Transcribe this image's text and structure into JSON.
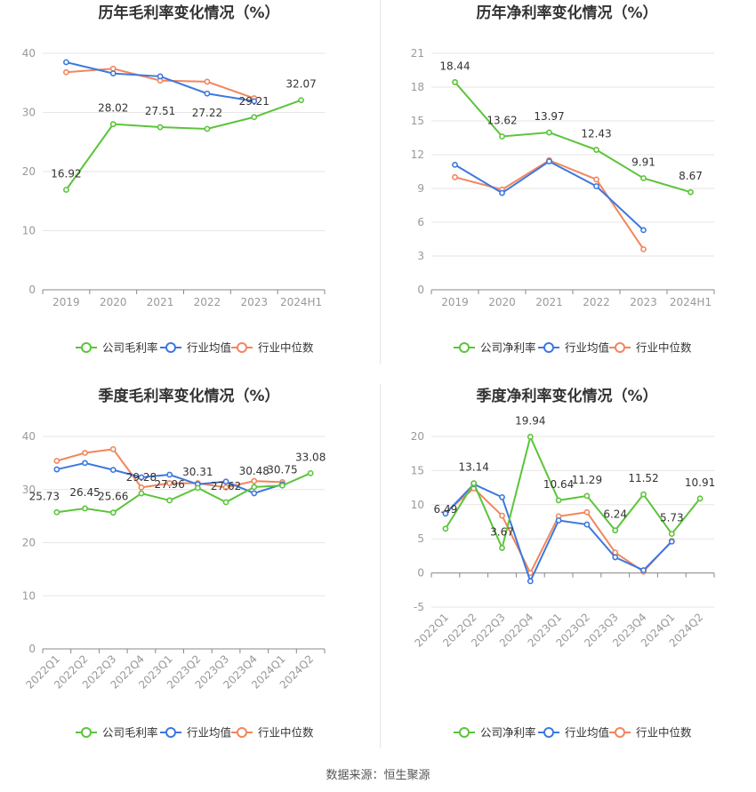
{
  "source_label": "数据来源：恒生聚源",
  "colors": {
    "company": "#5cc43b",
    "avg": "#3d78e0",
    "median": "#f2865c",
    "grid": "#e6e6e6",
    "axis": "#999999",
    "label": "#333333",
    "title": "#333333"
  },
  "chart_data": [
    {
      "id": "annual-gross",
      "type": "line",
      "title": "历年毛利率变化情况（%）",
      "categories": [
        "2019",
        "2020",
        "2021",
        "2022",
        "2023",
        "2024H1"
      ],
      "ylim": [
        0,
        40
      ],
      "yticks": [
        0,
        10,
        20,
        30,
        40
      ],
      "rotate_x": false,
      "legend": "bottom",
      "series": [
        {
          "name": "公司毛利率",
          "key": "company",
          "values": [
            16.92,
            28.02,
            27.51,
            27.22,
            29.21,
            32.07
          ],
          "labels": [
            "16.92",
            "28.02",
            "27.51",
            "27.22",
            "29.21",
            "32.07"
          ]
        },
        {
          "name": "行业均值",
          "key": "avg",
          "values": [
            38.5,
            36.6,
            36.1,
            33.2,
            31.9,
            null
          ]
        },
        {
          "name": "行业中位数",
          "key": "median",
          "values": [
            36.8,
            37.4,
            35.4,
            35.2,
            32.4,
            null
          ]
        }
      ]
    },
    {
      "id": "annual-net",
      "type": "line",
      "title": "历年净利率变化情况（%）",
      "categories": [
        "2019",
        "2020",
        "2021",
        "2022",
        "2023",
        "2024H1"
      ],
      "ylim": [
        0,
        21
      ],
      "yticks": [
        0,
        3,
        6,
        9,
        12,
        15,
        18,
        21
      ],
      "rotate_x": false,
      "legend": "bottom",
      "series": [
        {
          "name": "公司净利率",
          "key": "company",
          "values": [
            18.44,
            13.62,
            13.97,
            12.43,
            9.91,
            8.67
          ],
          "labels": [
            "18.44",
            "13.62",
            "13.97",
            "12.43",
            "9.91",
            "8.67"
          ]
        },
        {
          "name": "行业均值",
          "key": "avg",
          "values": [
            11.1,
            8.6,
            11.4,
            9.2,
            5.3,
            null
          ]
        },
        {
          "name": "行业中位数",
          "key": "median",
          "values": [
            10.0,
            8.9,
            11.5,
            9.8,
            3.6,
            null
          ]
        }
      ]
    },
    {
      "id": "quarterly-gross",
      "type": "line",
      "title": "季度毛利率变化情况（%）",
      "categories": [
        "2022Q1",
        "2022Q2",
        "2022Q3",
        "2022Q4",
        "2023Q1",
        "2023Q2",
        "2023Q3",
        "2023Q4",
        "2024Q1",
        "2024Q2"
      ],
      "ylim": [
        0,
        40
      ],
      "yticks": [
        0,
        10,
        20,
        30,
        40
      ],
      "rotate_x": true,
      "legend": "bottom",
      "series": [
        {
          "name": "公司毛利率",
          "key": "company",
          "values": [
            25.73,
            26.45,
            25.66,
            29.28,
            27.96,
            30.31,
            27.62,
            30.48,
            30.75,
            33.08
          ],
          "labels": [
            "25.73",
            "26.45",
            "25.66",
            "29.28",
            "27.96",
            "30.31",
            "27.62",
            "30.48",
            "30.75",
            "33.08"
          ]
        },
        {
          "name": "行业均值",
          "key": "avg",
          "values": [
            33.8,
            35.0,
            33.7,
            32.3,
            32.8,
            31.0,
            31.5,
            29.3,
            31.0,
            null
          ]
        },
        {
          "name": "行业中位数",
          "key": "median",
          "values": [
            35.4,
            36.9,
            37.6,
            30.4,
            31.2,
            31.2,
            30.4,
            31.6,
            31.4,
            null
          ]
        }
      ]
    },
    {
      "id": "quarterly-net",
      "type": "line",
      "title": "季度净利率变化情况（%）",
      "categories": [
        "2022Q1",
        "2022Q2",
        "2022Q3",
        "2022Q4",
        "2023Q1",
        "2023Q2",
        "2023Q3",
        "2023Q4",
        "2024Q1",
        "2024Q2"
      ],
      "ylim": [
        -5,
        20
      ],
      "yticks": [
        -5,
        0,
        5,
        10,
        15,
        20
      ],
      "rotate_x": true,
      "legend": "bottom",
      "series": [
        {
          "name": "公司净利率",
          "key": "company",
          "values": [
            6.49,
            13.14,
            3.67,
            19.94,
            10.64,
            11.29,
            6.24,
            11.52,
            5.73,
            10.91
          ],
          "labels": [
            "6.49",
            "13.14",
            "3.67",
            "19.94",
            "10.64",
            "11.29",
            "6.24",
            "11.52",
            "5.73",
            "10.91"
          ]
        },
        {
          "name": "行业均值",
          "key": "avg",
          "values": [
            8.7,
            13.0,
            11.1,
            -1.2,
            7.7,
            7.1,
            2.3,
            0.4,
            4.6,
            null
          ]
        },
        {
          "name": "行业中位数",
          "key": "median",
          "values": [
            8.8,
            12.4,
            8.4,
            0.0,
            8.3,
            8.9,
            3.0,
            0.2,
            4.7,
            null
          ]
        }
      ]
    }
  ]
}
